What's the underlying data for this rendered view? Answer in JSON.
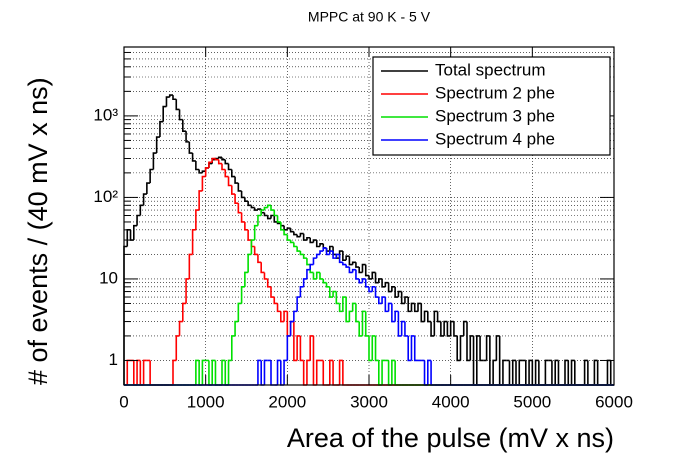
{
  "chart_data": {
    "type": "histogram",
    "title": "MPPC at 90 K - 5 V",
    "xlabel": "Area of the pulse (mV x ns)",
    "ylabel": "# of events / (40 mV x ns)",
    "log_y": true,
    "grid": true,
    "legend": "top-right",
    "xlim": [
      0,
      6000
    ],
    "xticks": [
      0,
      1000,
      2000,
      3000,
      4000,
      5000,
      6000
    ],
    "ylim": [
      0.5,
      7000
    ],
    "yticks": [
      1,
      10,
      {
        "value": 100,
        "label": "10²"
      },
      {
        "value": 1000,
        "label": "10³"
      }
    ],
    "minor_yticks": [
      2,
      3,
      4,
      5,
      6,
      7,
      8,
      9,
      20,
      30,
      40,
      50,
      60,
      70,
      80,
      90,
      200,
      300,
      400,
      500,
      600,
      700,
      800,
      900,
      2000,
      3000,
      4000,
      5000,
      6000,
      7000
    ],
    "bins": [
      0,
      40,
      80,
      120,
      160,
      200,
      240,
      280,
      320,
      360,
      400,
      440,
      480,
      520,
      560,
      600,
      640,
      680,
      720,
      760,
      800,
      840,
      880,
      920,
      960,
      1000,
      1040,
      1080,
      1120,
      1160,
      1200,
      1240,
      1280,
      1320,
      1360,
      1400,
      1440,
      1480,
      1520,
      1560,
      1600,
      1640,
      1680,
      1720,
      1760,
      1800,
      1840,
      1880,
      1920,
      1960,
      2000,
      2040,
      2080,
      2120,
      2160,
      2200,
      2240,
      2280,
      2320,
      2360,
      2400,
      2440,
      2480,
      2520,
      2560,
      2600,
      2640,
      2680,
      2720,
      2760,
      2800,
      2840,
      2880,
      2920,
      2960,
      3000,
      3040,
      3080,
      3120,
      3160,
      3200,
      3240,
      3280,
      3320,
      3360,
      3400,
      3440,
      3480,
      3520,
      3560,
      3600,
      3640,
      3680,
      3720,
      3760,
      3800,
      3840,
      3880,
      3920,
      3960,
      4000,
      4040,
      4080,
      4120,
      4160,
      4200,
      4240,
      4280,
      4320,
      4360,
      4400,
      4440,
      4480,
      4520,
      4560,
      4600,
      4640,
      4680,
      4720,
      4760,
      4800,
      4840,
      4880,
      4920,
      4960,
      5000,
      5040,
      5080,
      5120,
      5160,
      5200,
      5240,
      5280,
      5320,
      5360,
      5400,
      5440,
      5480,
      5520,
      5560,
      5600,
      5640,
      5680,
      5720,
      5760,
      5800,
      5840,
      5880,
      5920,
      5960,
      6000
    ],
    "series": [
      {
        "name": "Total spectrum",
        "color": "#000000",
        "values": [
          25,
          40,
          30,
          45,
          60,
          80,
          110,
          150,
          220,
          350,
          550,
          850,
          1300,
          1700,
          1800,
          1600,
          1200,
          900,
          650,
          480,
          350,
          280,
          220,
          200,
          210,
          230,
          260,
          290,
          300,
          310,
          290,
          260,
          220,
          180,
          150,
          120,
          100,
          90,
          80,
          75,
          70,
          72,
          65,
          60,
          55,
          60,
          50,
          48,
          45,
          40,
          42,
          38,
          35,
          33,
          36,
          30,
          32,
          28,
          30,
          25,
          27,
          24,
          22,
          25,
          20,
          18,
          22,
          17,
          19,
          15,
          16,
          14,
          12,
          15,
          11,
          10,
          12,
          9,
          10,
          8,
          9,
          7,
          8,
          6,
          7,
          5,
          6,
          4,
          5,
          4,
          5,
          3,
          4,
          3,
          2,
          4,
          3,
          2,
          3,
          2,
          3,
          2,
          1,
          2,
          3,
          1,
          2,
          0,
          2,
          1,
          1,
          2,
          0,
          1,
          2,
          0,
          1,
          1,
          0,
          1,
          0,
          1,
          1,
          0,
          1,
          0,
          1,
          0,
          0,
          1,
          1,
          0,
          1,
          0,
          0,
          1,
          0,
          1,
          0,
          0,
          0,
          1,
          0,
          0,
          1,
          0,
          0,
          0,
          1,
          0
        ]
      },
      {
        "name": "Spectrum 2 phe",
        "color": "#ff0000",
        "values": [
          0,
          1,
          1,
          0,
          1,
          0,
          1,
          1,
          0,
          0,
          0,
          0,
          0,
          0,
          0,
          1,
          2,
          3,
          5,
          10,
          20,
          40,
          70,
          120,
          180,
          230,
          270,
          300,
          290,
          260,
          220,
          180,
          140,
          110,
          85,
          65,
          50,
          40,
          30,
          25,
          20,
          16,
          12,
          10,
          8,
          6,
          5,
          4,
          3,
          4,
          2,
          3,
          1,
          2,
          1,
          0,
          1,
          2,
          0,
          1,
          1,
          0,
          0,
          1,
          0,
          0,
          1,
          0,
          0,
          0,
          0,
          0,
          0,
          0,
          0,
          0,
          0,
          0,
          0,
          0,
          0,
          0,
          0,
          0,
          0,
          0,
          0,
          0,
          0,
          0,
          0,
          0,
          0,
          0,
          0,
          0,
          0,
          0,
          0,
          0,
          0,
          0,
          0,
          0,
          0,
          0,
          0,
          0,
          0,
          0,
          0,
          0,
          0,
          0,
          0,
          0,
          0,
          0,
          0,
          0,
          0,
          0,
          0,
          0,
          0,
          0,
          0,
          0,
          0,
          0,
          0,
          0,
          0,
          0,
          0,
          0,
          0,
          0,
          0,
          0,
          0,
          0,
          0,
          0,
          0,
          0,
          0,
          0,
          0,
          0
        ]
      },
      {
        "name": "Spectrum 3 phe",
        "color": "#00e000",
        "values": [
          0,
          0,
          0,
          0,
          0,
          0,
          0,
          0,
          0,
          0,
          0,
          0,
          0,
          0,
          0,
          0,
          0,
          0,
          0,
          0,
          0,
          0,
          1,
          0,
          1,
          1,
          0,
          1,
          0,
          0,
          1,
          0,
          1,
          2,
          3,
          5,
          8,
          12,
          20,
          30,
          45,
          60,
          70,
          75,
          80,
          70,
          60,
          50,
          40,
          35,
          30,
          28,
          25,
          22,
          20,
          18,
          15,
          12,
          10,
          12,
          10,
          9,
          8,
          6,
          7,
          5,
          4,
          6,
          3,
          4,
          5,
          3,
          2,
          4,
          2,
          1,
          2,
          1,
          0,
          1,
          1,
          0,
          1,
          0,
          0,
          0,
          0,
          0,
          0,
          0,
          0,
          0,
          0,
          0,
          0,
          0,
          0,
          0,
          0,
          0,
          0,
          0,
          0,
          0,
          0,
          0,
          0,
          0,
          0,
          0,
          0,
          0,
          0,
          0,
          0,
          0,
          0,
          0,
          0,
          0,
          0,
          0,
          0,
          0,
          0,
          0,
          0,
          0,
          0,
          0,
          0,
          0,
          0,
          0,
          0,
          0,
          0,
          0,
          0,
          0,
          0,
          0,
          0,
          0,
          0,
          0,
          0,
          0,
          0,
          0
        ]
      },
      {
        "name": "Spectrum 4 phe",
        "color": "#0000ff",
        "values": [
          0,
          0,
          0,
          0,
          0,
          0,
          0,
          0,
          0,
          0,
          0,
          0,
          0,
          0,
          0,
          0,
          0,
          0,
          0,
          0,
          0,
          0,
          0,
          0,
          0,
          0,
          0,
          0,
          0,
          0,
          0,
          0,
          0,
          0,
          0,
          0,
          0,
          0,
          0,
          0,
          0,
          1,
          0,
          1,
          1,
          0,
          0,
          1,
          0,
          1,
          2,
          3,
          4,
          6,
          8,
          10,
          13,
          15,
          18,
          20,
          22,
          24,
          20,
          22,
          18,
          20,
          16,
          15,
          14,
          12,
          13,
          10,
          9,
          10,
          8,
          7,
          8,
          6,
          5,
          6,
          4,
          5,
          3,
          4,
          2,
          3,
          2,
          1,
          2,
          1,
          1,
          1,
          0,
          1,
          0,
          0,
          0,
          0,
          0,
          0,
          0,
          0,
          0,
          0,
          0,
          0,
          0,
          0,
          0,
          0,
          0,
          0,
          0,
          0,
          0,
          0,
          0,
          0,
          0,
          0,
          0,
          0,
          0,
          0,
          0,
          0,
          0,
          0,
          0,
          0,
          0,
          0,
          0,
          0,
          0,
          0,
          0,
          0,
          0,
          0,
          0,
          0,
          0,
          0,
          0,
          0,
          0,
          0,
          0,
          0
        ]
      }
    ]
  }
}
